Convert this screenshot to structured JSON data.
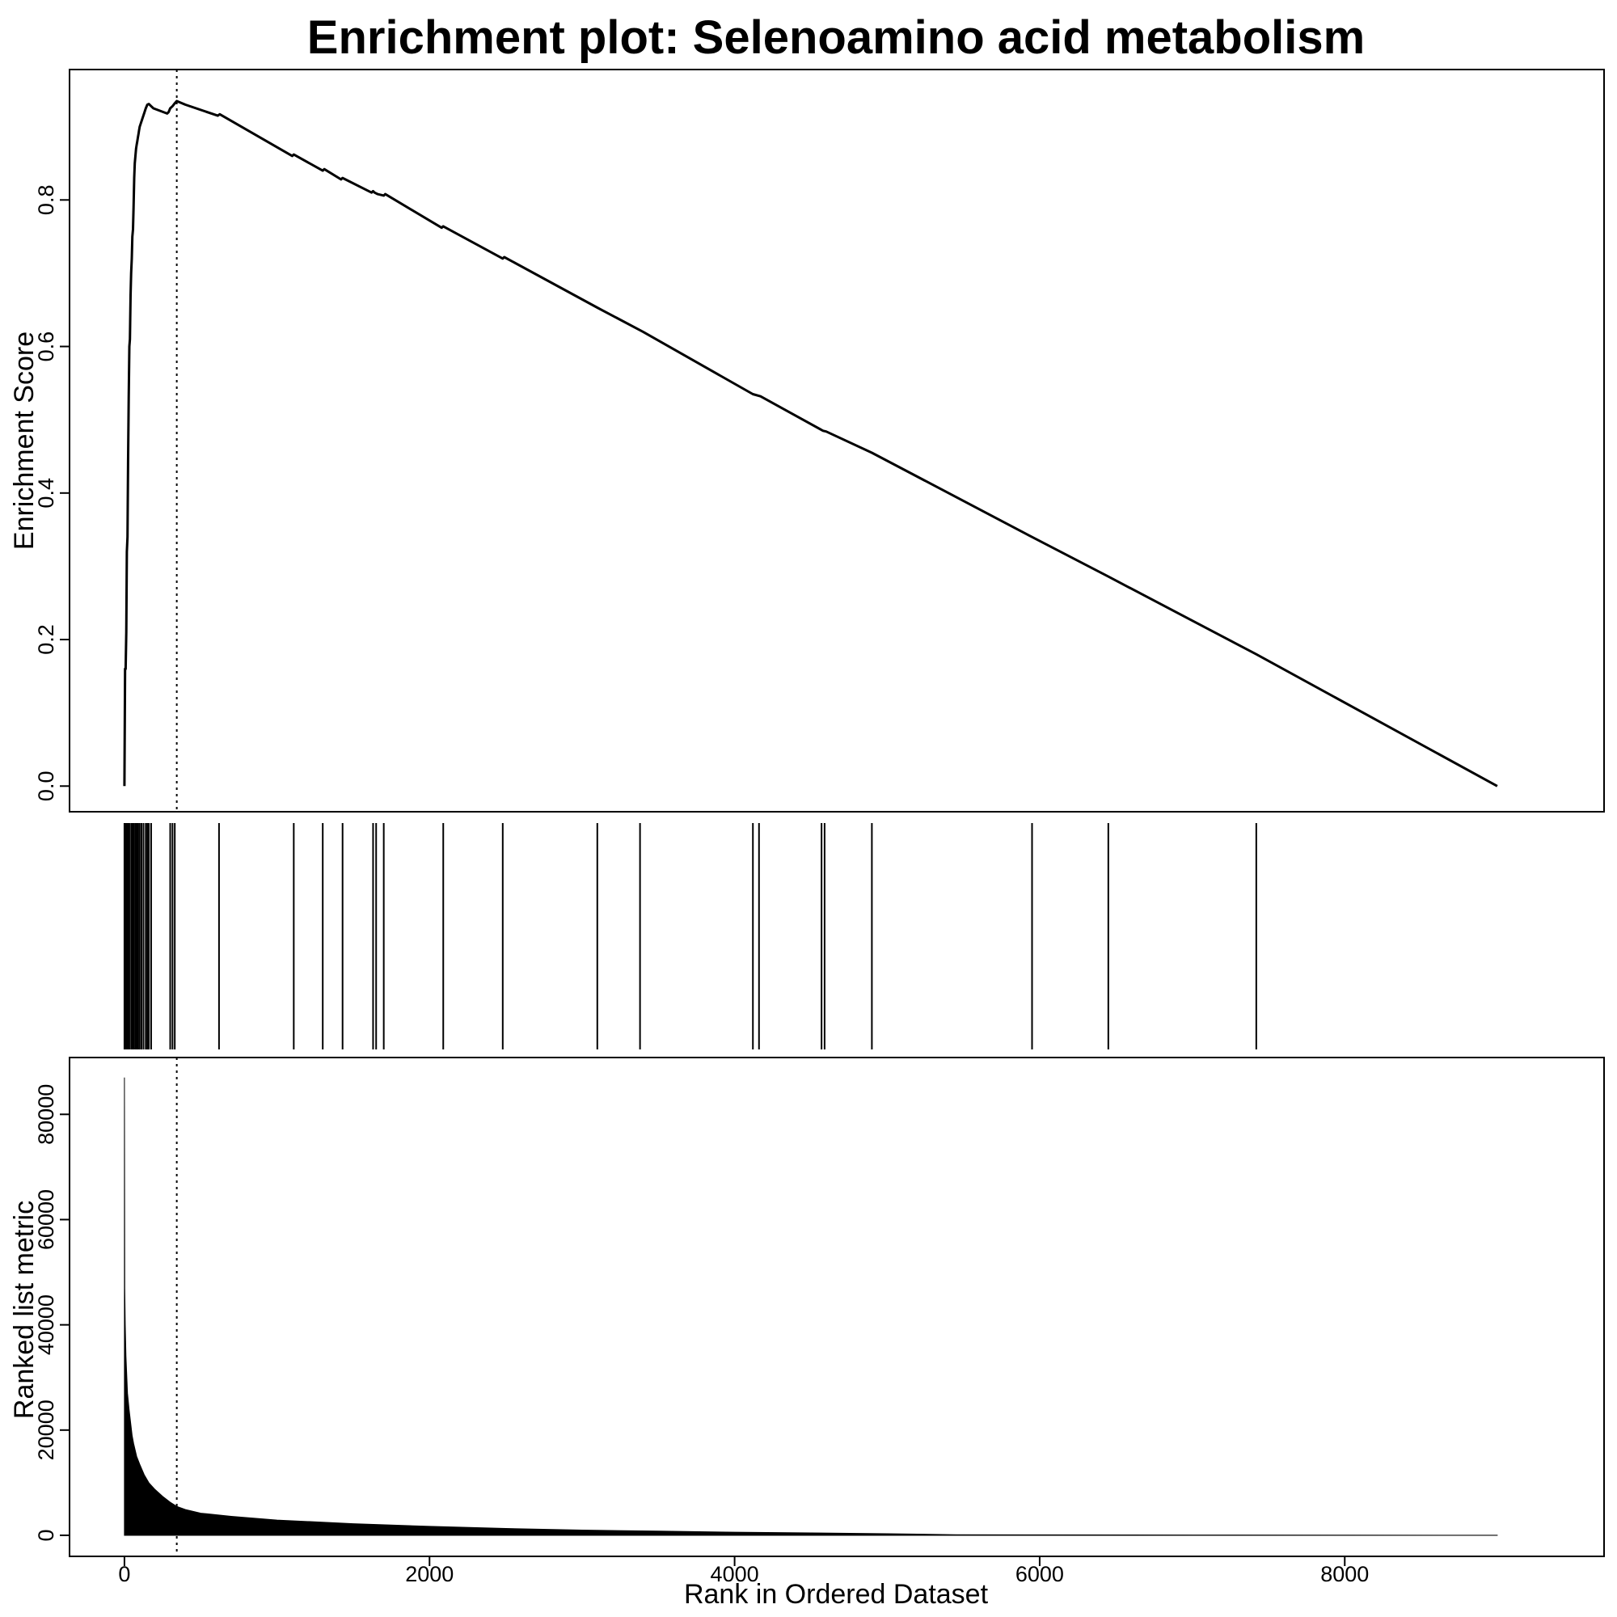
{
  "chart_data": [
    {
      "type": "line",
      "panel": "enrichment-score",
      "title": "Enrichment plot: Selenoamino acid metabolism",
      "xlabel": "",
      "ylabel": "Enrichment Score",
      "xlim": [
        -360,
        9700
      ],
      "ylim": [
        -0.035,
        0.978
      ],
      "yticks": [
        0.0,
        0.2,
        0.4,
        0.6,
        0.8
      ],
      "ytick_labels": [
        "0.0",
        "0.2",
        "0.4",
        "0.6",
        "0.8"
      ],
      "grid": false,
      "vline_x": 343,
      "x": [
        0,
        4,
        8,
        12,
        16,
        20,
        24,
        28,
        32,
        36,
        40,
        44,
        48,
        52,
        56,
        60,
        64,
        68,
        72,
        76,
        80,
        84,
        88,
        92,
        96,
        100,
        108,
        116,
        124,
        132,
        140,
        150,
        160,
        175,
        190,
        280,
        290,
        300,
        315,
        330,
        343,
        400,
        612,
        625,
        1100,
        1110,
        1300,
        1310,
        1420,
        1430,
        1620,
        1630,
        1640,
        1660,
        1700,
        1710,
        2080,
        2090,
        2480,
        2490,
        3100,
        3400,
        4120,
        4170,
        4580,
        4600,
        4900,
        5950,
        6450,
        7420,
        9000
      ],
      "y": [
        0.0,
        0.16,
        0.16,
        0.21,
        0.32,
        0.34,
        0.44,
        0.53,
        0.6,
        0.61,
        0.67,
        0.7,
        0.72,
        0.75,
        0.76,
        0.79,
        0.83,
        0.85,
        0.86,
        0.87,
        0.875,
        0.88,
        0.885,
        0.89,
        0.895,
        0.9,
        0.905,
        0.91,
        0.915,
        0.92,
        0.925,
        0.93,
        0.931,
        0.928,
        0.925,
        0.918,
        0.92,
        0.925,
        0.928,
        0.932,
        0.935,
        0.93,
        0.915,
        0.917,
        0.86,
        0.862,
        0.84,
        0.842,
        0.828,
        0.83,
        0.81,
        0.812,
        0.81,
        0.808,
        0.806,
        0.808,
        0.762,
        0.764,
        0.72,
        0.722,
        0.653,
        0.62,
        0.535,
        0.532,
        0.485,
        0.484,
        0.455,
        0.34,
        0.286,
        0.18,
        0.0
      ]
    },
    {
      "type": "bar",
      "panel": "gene-set-hits",
      "title": "",
      "xlim": [
        -360,
        9700
      ],
      "x": [
        0,
        8,
        16,
        24,
        32,
        44,
        52,
        60,
        70,
        80,
        90,
        100,
        112,
        125,
        140,
        150,
        160,
        175,
        300,
        315,
        330,
        620,
        1110,
        1300,
        1430,
        1630,
        1650,
        1700,
        2090,
        2480,
        3100,
        3380,
        4120,
        4160,
        4570,
        4590,
        4900,
        5950,
        6450,
        7420
      ]
    },
    {
      "type": "area",
      "panel": "ranked-list-metric",
      "title": "",
      "xlabel": "Rank in Ordered Dataset",
      "ylabel": "Ranked list metric",
      "xlim": [
        -360,
        9700
      ],
      "ylim": [
        -4000,
        90800
      ],
      "xticks": [
        0,
        2000,
        4000,
        6000,
        8000
      ],
      "xtick_labels": [
        "0",
        "2000",
        "4000",
        "6000",
        "8000"
      ],
      "yticks": [
        0,
        20000,
        40000,
        60000,
        80000
      ],
      "ytick_labels": [
        "0",
        "20000",
        "40000",
        "60000",
        "80000"
      ],
      "grid": false,
      "vline_x": 343,
      "x": [
        0,
        2,
        5,
        10,
        20,
        30,
        40,
        50,
        60,
        80,
        100,
        130,
        160,
        200,
        250,
        300,
        343,
        400,
        500,
        700,
        1000,
        1500,
        2000,
        2500,
        3000,
        3500,
        4000,
        4500,
        5000,
        5450,
        6000,
        7000,
        8000,
        9000
      ],
      "y": [
        87000,
        47000,
        40000,
        34000,
        27000,
        24000,
        21500,
        19000,
        17500,
        15000,
        13500,
        11500,
        10000,
        8700,
        7400,
        6300,
        5500,
        4900,
        4200,
        3600,
        2900,
        2200,
        1700,
        1300,
        1000,
        800,
        600,
        450,
        300,
        120,
        80,
        50,
        30,
        10
      ]
    }
  ]
}
